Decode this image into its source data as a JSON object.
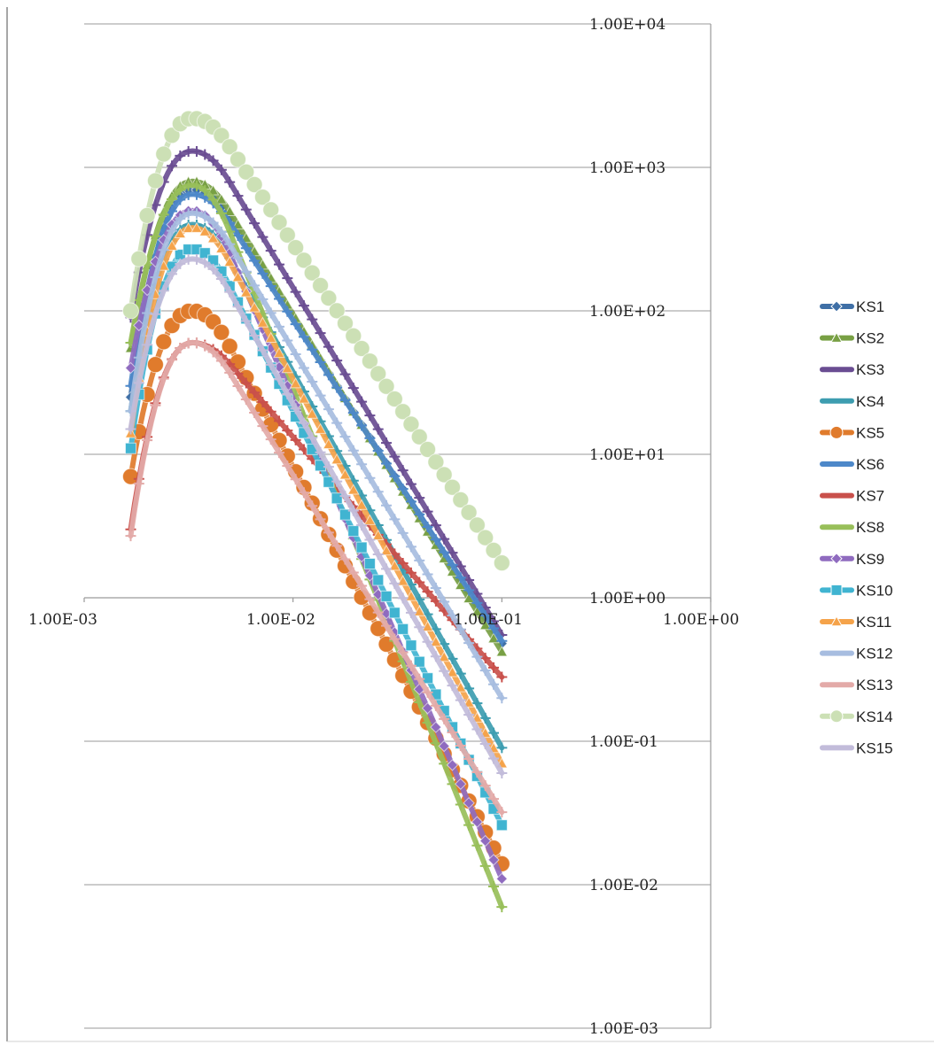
{
  "chart_data": {
    "type": "line",
    "title": "",
    "xlabel": "",
    "ylabel": "",
    "x_scale": "log",
    "y_scale": "log",
    "xlim": [
      0.001,
      1
    ],
    "ylim": [
      0.001,
      10000
    ],
    "x_ticks": [
      "1.00E-03",
      "1.00E-02",
      "1.00E-01",
      "1.00E+00"
    ],
    "y_ticks": [
      "1.00E-03",
      "1.00E-02",
      "1.00E-01",
      "1.00E+00",
      "1.00E+01",
      "1.00E+02",
      "1.00E+03",
      "1.00E+04"
    ],
    "grid": "horizontal",
    "legend_position": "right",
    "series": [
      {
        "name": "KS1",
        "color": "#3f6fa6",
        "marker": "diamond",
        "x_start": 0.00167,
        "x_end": 0.1,
        "y_start": 25,
        "y_peak": 700,
        "y_end": 0.48
      },
      {
        "name": "KS2",
        "color": "#78a044",
        "marker": "triangle",
        "x_start": 0.00167,
        "x_end": 0.1,
        "y_start": 55,
        "y_peak": 800,
        "y_end": 0.42
      },
      {
        "name": "KS3",
        "color": "#6a4d92",
        "marker": "star",
        "x_start": 0.00167,
        "x_end": 0.1,
        "y_start": 90,
        "y_peak": 1300,
        "y_end": 0.55
      },
      {
        "name": "KS4",
        "color": "#3d9db0",
        "marker": "x",
        "x_start": 0.00167,
        "x_end": 0.1,
        "y_start": 20,
        "y_peak": 400,
        "y_end": 0.09
      },
      {
        "name": "KS5",
        "color": "#e07b2c",
        "marker": "circle",
        "x_start": 0.00167,
        "x_end": 0.1,
        "y_start": 7,
        "y_peak": 100,
        "y_end": 0.014
      },
      {
        "name": "KS6",
        "color": "#4d88c9",
        "marker": "plus",
        "x_start": 0.00167,
        "x_end": 0.1,
        "y_start": 30,
        "y_peak": 650,
        "y_end": 0.5
      },
      {
        "name": "KS7",
        "color": "#c9504b",
        "marker": "dash",
        "x_start": 0.00167,
        "x_end": 0.1,
        "y_start": 3,
        "y_peak": 60,
        "y_end": 0.28
      },
      {
        "name": "KS8",
        "color": "#98bf5a",
        "marker": "dash",
        "x_start": 0.00167,
        "x_end": 0.1,
        "y_start": 60,
        "y_peak": 750,
        "y_end": 0.007
      },
      {
        "name": "KS9",
        "color": "#8f6bbf",
        "marker": "diamond",
        "x_start": 0.00167,
        "x_end": 0.1,
        "y_start": 40,
        "y_peak": 500,
        "y_end": 0.011
      },
      {
        "name": "KS10",
        "color": "#40b4d1",
        "marker": "square",
        "x_start": 0.00167,
        "x_end": 0.1,
        "y_start": 11,
        "y_peak": 270,
        "y_end": 0.026
      },
      {
        "name": "KS11",
        "color": "#f5a34a",
        "marker": "triangle",
        "x_start": 0.00167,
        "x_end": 0.1,
        "y_start": 14,
        "y_peak": 380,
        "y_end": 0.07
      },
      {
        "name": "KS12",
        "color": "#a7bde0",
        "marker": "x",
        "x_start": 0.00167,
        "x_end": 0.1,
        "y_start": 20,
        "y_peak": 480,
        "y_end": 0.2
      },
      {
        "name": "KS13",
        "color": "#e3aaa8",
        "marker": "star",
        "x_start": 0.00167,
        "x_end": 0.1,
        "y_start": 2.7,
        "y_peak": 60,
        "y_end": 0.032
      },
      {
        "name": "KS14",
        "color": "#cce0b5",
        "marker": "circle",
        "x_start": 0.00167,
        "x_end": 0.1,
        "y_start": 100,
        "y_peak": 2200,
        "y_end": 1.75
      },
      {
        "name": "KS15",
        "color": "#c2bcda",
        "marker": "plus",
        "x_start": 0.00167,
        "x_end": 0.1,
        "y_start": 15,
        "y_peak": 230,
        "y_end": 0.06
      }
    ]
  }
}
